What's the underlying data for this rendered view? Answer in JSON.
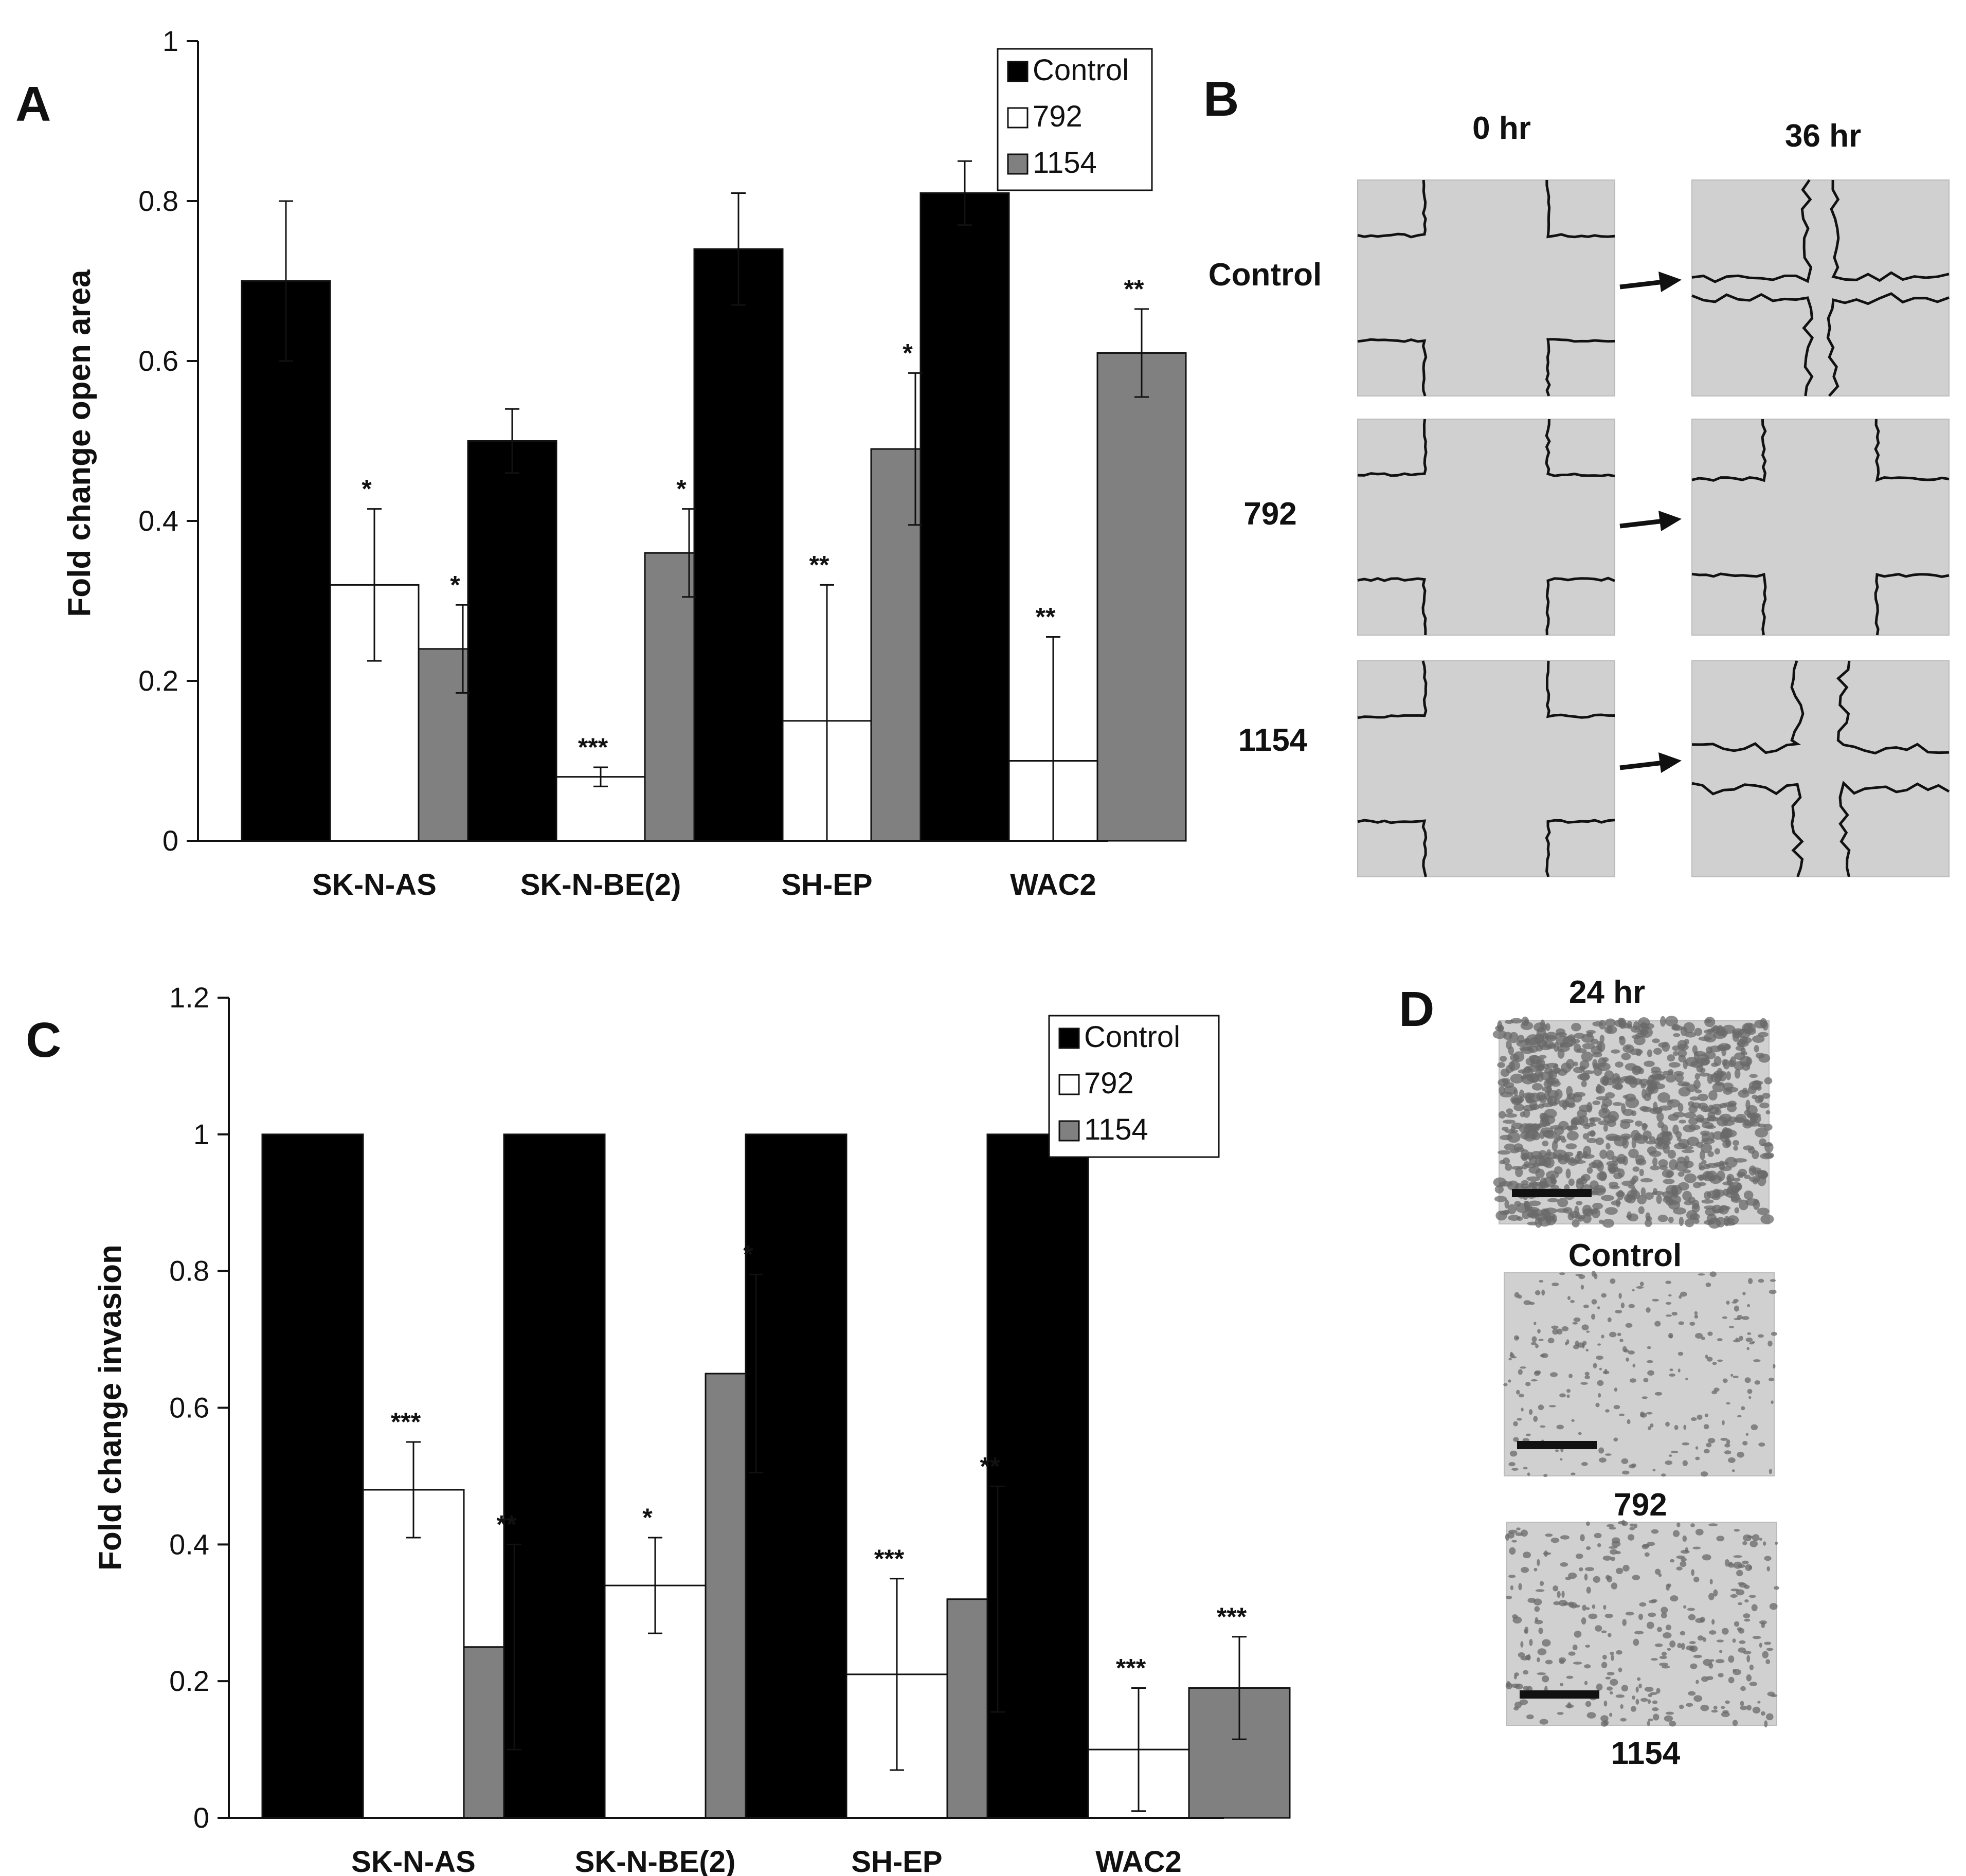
{
  "figure": {
    "panel_letters": [
      "A",
      "B",
      "C",
      "D"
    ]
  },
  "colors": {
    "control": "#000000",
    "compound_792": "#ffffff",
    "compound_1154": "#808080",
    "micrograph_bg": "#d0d0d0",
    "wound_edge": "#111111",
    "invaded_cells": "#6a6a6a"
  },
  "chart_data": [
    {
      "panel": "A",
      "type": "bar",
      "title": "",
      "xlabel": "",
      "ylabel": "Fold change open area",
      "ylim": [
        0,
        1
      ],
      "yticks": [
        0,
        0.2,
        0.4,
        0.6,
        0.8,
        1
      ],
      "ytick_labels": [
        "0",
        "0.2",
        "0.4",
        "0.6",
        "0.8",
        "1"
      ],
      "grid": false,
      "legend": {
        "placement": "top-right",
        "entries": [
          "Control",
          "792",
          "1154"
        ]
      },
      "categories": [
        "SK-N-AS",
        "SK-N-BE(2)",
        "SH-EP",
        "WAC2"
      ],
      "series": [
        {
          "name": "Control",
          "values": [
            0.7,
            0.5,
            0.74,
            0.81
          ],
          "error": [
            0.1,
            0.04,
            0.07,
            0.04
          ],
          "significance": [
            "",
            "",
            "",
            ""
          ]
        },
        {
          "name": "792",
          "values": [
            0.32,
            0.08,
            0.15,
            0.1
          ],
          "error": [
            0.095,
            0.012,
            0.17,
            0.155
          ],
          "significance": [
            "*",
            "***",
            "**",
            "**"
          ]
        },
        {
          "name": "1154",
          "values": [
            0.24,
            0.36,
            0.49,
            0.61
          ],
          "error": [
            0.055,
            0.055,
            0.095,
            0.055
          ],
          "significance": [
            "*",
            "*",
            "*",
            "**"
          ]
        }
      ]
    },
    {
      "panel": "C",
      "type": "bar",
      "title": "",
      "xlabel": "",
      "ylabel": "Fold change invasion",
      "ylim": [
        0,
        1.2
      ],
      "yticks": [
        0,
        0.2,
        0.4,
        0.6,
        0.8,
        1,
        1.2
      ],
      "ytick_labels": [
        "0",
        "0.2",
        "0.4",
        "0.6",
        "0.8",
        "1",
        "1.2"
      ],
      "grid": false,
      "legend": {
        "placement": "top-right",
        "entries": [
          "Control",
          "792",
          "1154"
        ]
      },
      "categories": [
        "SK-N-AS",
        "SK-N-BE(2)",
        "SH-EP",
        "WAC2"
      ],
      "series": [
        {
          "name": "Control",
          "values": [
            1.0,
            1.0,
            1.0,
            1.0
          ],
          "error": [
            0,
            0,
            0,
            0
          ],
          "significance": [
            "",
            "",
            "",
            ""
          ]
        },
        {
          "name": "792",
          "values": [
            0.48,
            0.34,
            0.21,
            0.1
          ],
          "error": [
            0.07,
            0.07,
            0.14,
            0.09
          ],
          "significance": [
            "***",
            "*",
            "***",
            "***"
          ]
        },
        {
          "name": "1154",
          "values": [
            0.25,
            0.65,
            0.32,
            0.19
          ],
          "error": [
            0.15,
            0.145,
            0.165,
            0.075
          ],
          "significance": [
            "**",
            "*",
            "**",
            "***"
          ]
        }
      ]
    }
  ],
  "panel_b": {
    "column_labels": [
      "0 hr",
      "36 hr"
    ],
    "row_labels": [
      "Control",
      "792",
      "1154"
    ],
    "arrow_icon": "right-arrow-icon"
  },
  "panel_d": {
    "time_label": "24 hr",
    "image_labels": [
      "Control",
      "792",
      "1154"
    ],
    "scale_bar_icon": "scale-bar-icon"
  }
}
